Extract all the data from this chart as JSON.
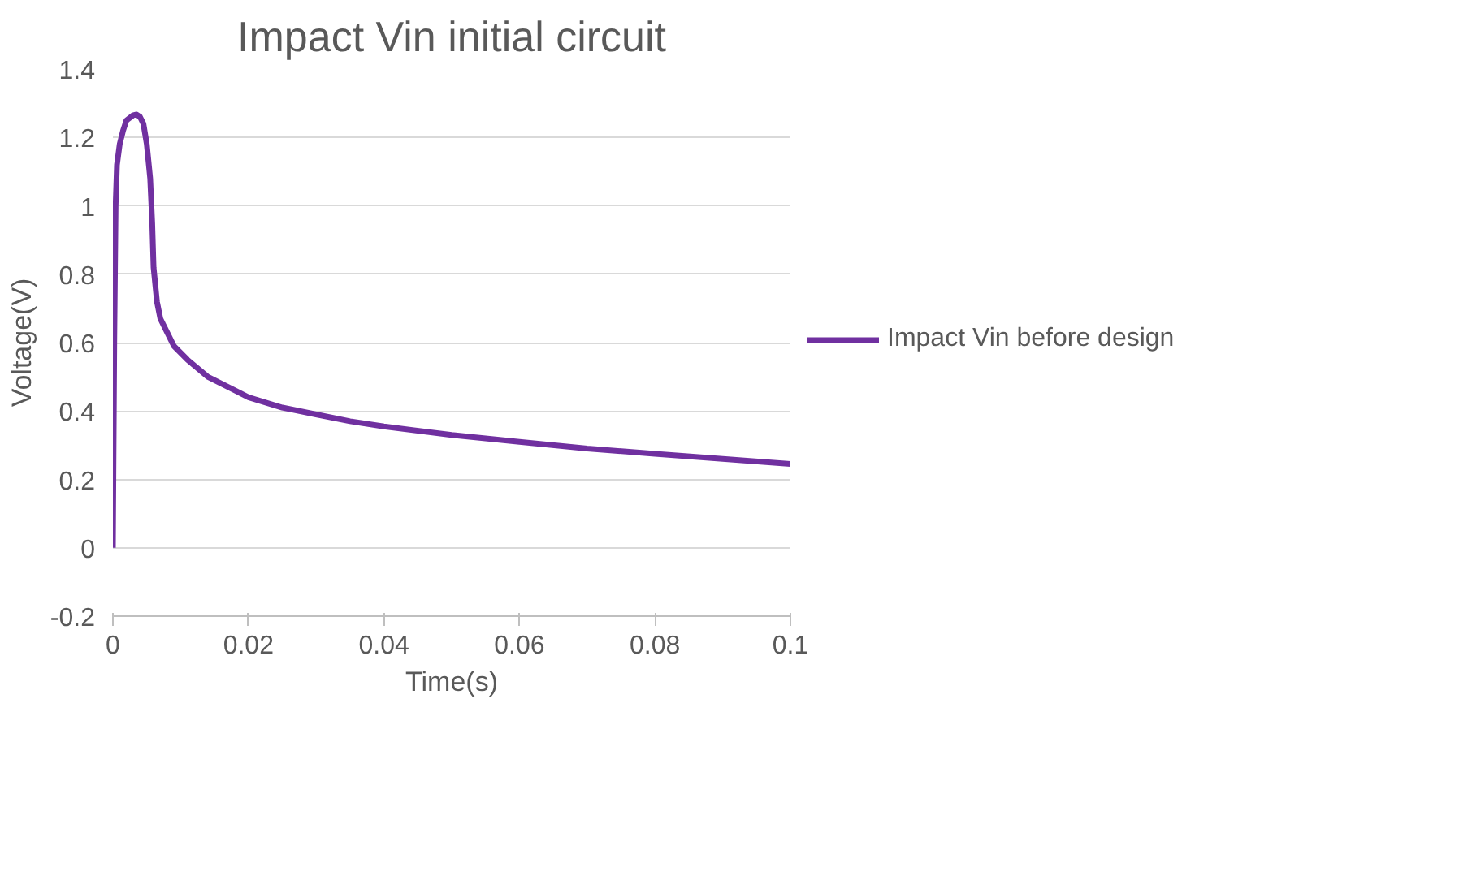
{
  "chart_data": {
    "type": "line",
    "title": "Impact Vin initial circuit",
    "xlabel": "Time(s)",
    "ylabel": "Voltage(V)",
    "xlim": [
      0,
      0.1
    ],
    "xticks": [
      0,
      0.02,
      0.04,
      0.06,
      0.08,
      0.1
    ],
    "ylim": [
      -0.2,
      1.4
    ],
    "yticks": [
      -0.2,
      0,
      0.2,
      0.4,
      0.6,
      0.8,
      1,
      1.2,
      1.4
    ],
    "grid": "y",
    "legend": "right",
    "marker": "none",
    "line_style": "solid",
    "series": [
      {
        "name": "Impact Vin before design",
        "color": "#7030a0",
        "x": [
          0,
          0.0002,
          0.0004,
          0.0006,
          0.001,
          0.0015,
          0.002,
          0.003,
          0.0035,
          0.004,
          0.0045,
          0.005,
          0.0055,
          0.0058,
          0.006,
          0.0065,
          0.007,
          0.008,
          0.009,
          0.011,
          0.014,
          0.018,
          0.02,
          0.025,
          0.03,
          0.035,
          0.04,
          0.05,
          0.06,
          0.07,
          0.08,
          0.09,
          0.1
        ],
        "values": [
          0,
          0.6,
          1.0,
          1.12,
          1.18,
          1.22,
          1.25,
          1.265,
          1.267,
          1.26,
          1.24,
          1.18,
          1.08,
          0.95,
          0.82,
          0.72,
          0.67,
          0.63,
          0.59,
          0.55,
          0.5,
          0.46,
          0.44,
          0.41,
          0.39,
          0.37,
          0.355,
          0.33,
          0.31,
          0.29,
          0.275,
          0.26,
          0.245
        ]
      }
    ]
  }
}
